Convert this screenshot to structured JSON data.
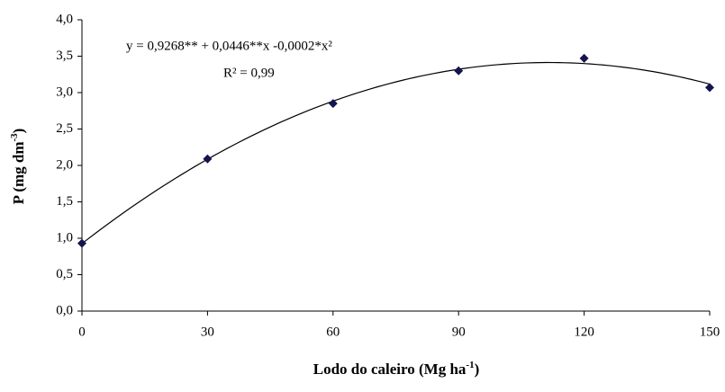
{
  "chart_data": {
    "type": "scatter",
    "x_label": {
      "text": "Lodo do caleiro (Mg ha",
      "sup": "-1",
      "end": ")"
    },
    "y_label": {
      "text": "P  (mg dm",
      "sup": "-3",
      "end": ")"
    },
    "annotations": [
      "y = 0,9268** + 0,0446**x  -0,0002*x²",
      "R² = 0,99"
    ],
    "x": [
      0,
      30,
      60,
      90,
      120,
      150
    ],
    "series": [
      {
        "color": "#141450",
        "values": [
          0.93,
          2.09,
          2.85,
          3.3,
          3.47,
          3.07
        ]
      }
    ],
    "trendline": {
      "type": "polynomial",
      "coefficients": [
        0.9268,
        0.0446,
        -0.0002
      ],
      "color": "#000000"
    },
    "xlim": [
      0,
      150
    ],
    "xticks": [
      0,
      30,
      60,
      90,
      120,
      150
    ],
    "ylim": [
      0,
      4
    ],
    "yticks": [
      {
        "value": 0,
        "label": "0,0"
      },
      {
        "value": 0.5,
        "label": "0,5"
      },
      {
        "value": 1,
        "label": "1,0"
      },
      {
        "value": 1.5,
        "label": "1,5"
      },
      {
        "value": 2,
        "label": "2,0"
      },
      {
        "value": 2.5,
        "label": "2,5"
      },
      {
        "value": 3,
        "label": "3,0"
      },
      {
        "value": 3.5,
        "label": "3,5"
      },
      {
        "value": 4,
        "label": "4,0"
      }
    ],
    "grid": false
  }
}
